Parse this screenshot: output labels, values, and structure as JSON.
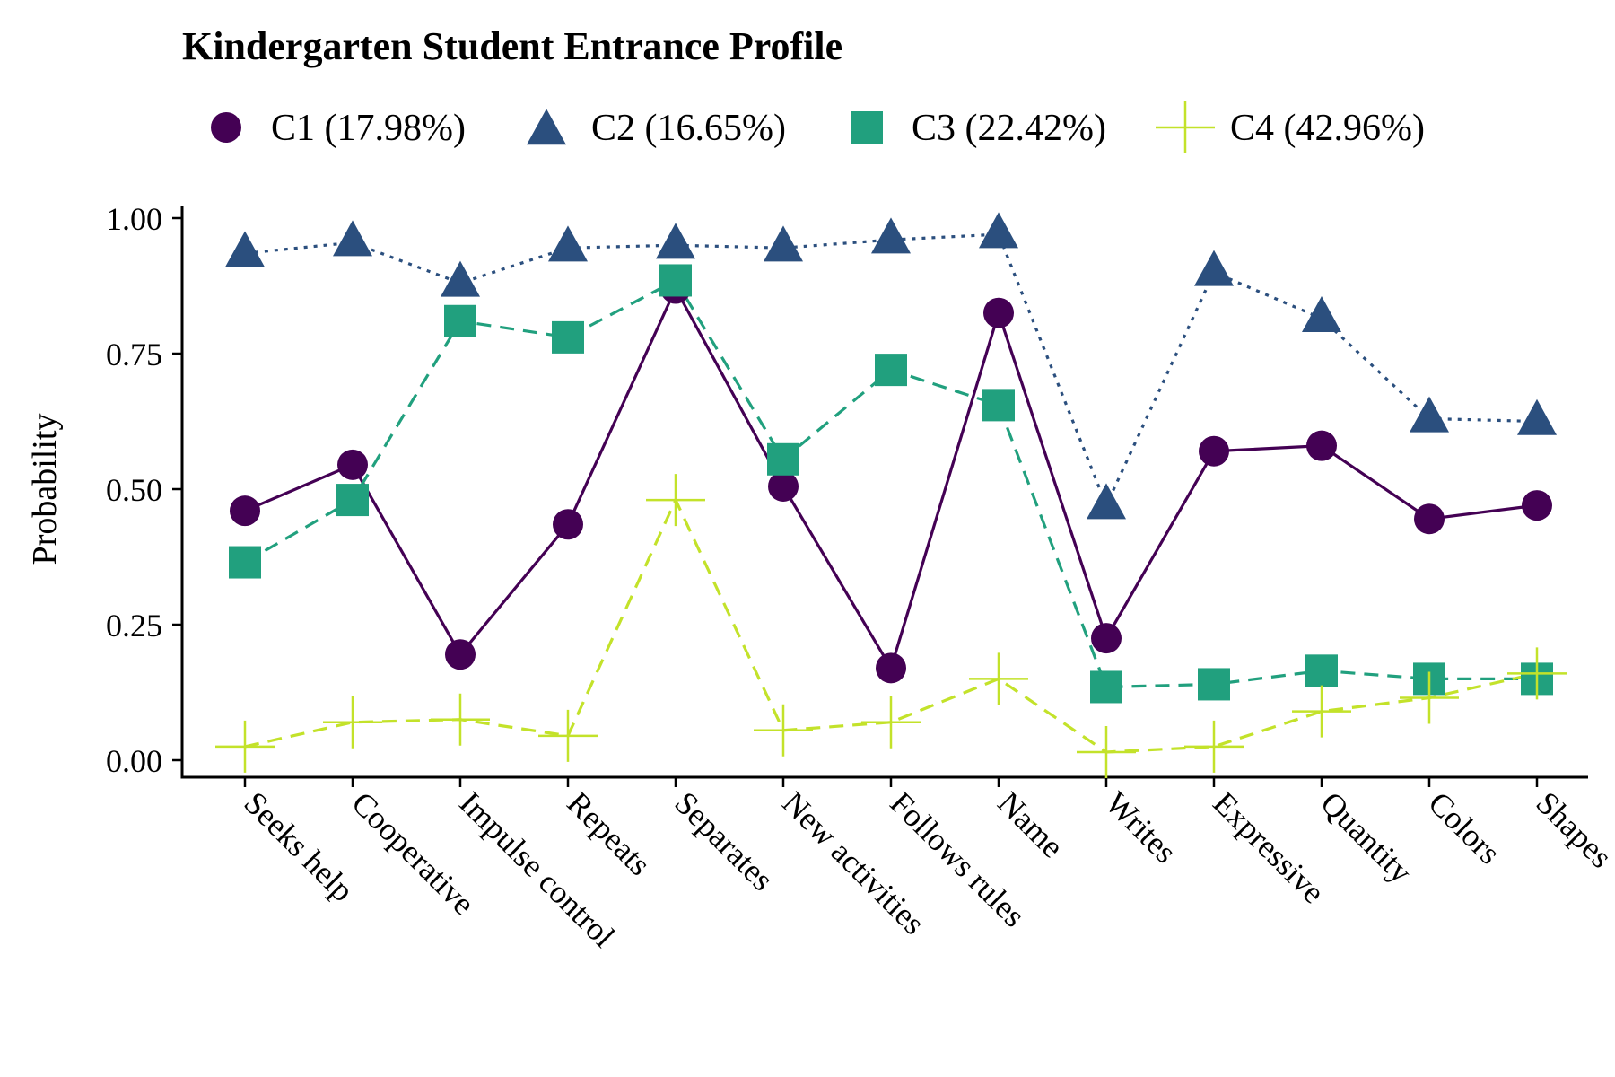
{
  "chart_data": {
    "type": "line",
    "title": "Kindergarten Student Entrance Profile",
    "xlabel": "",
    "ylabel": "Probability",
    "ylim": [
      0,
      1
    ],
    "yticks": [
      "0.00",
      "0.25",
      "0.50",
      "0.75",
      "1.00"
    ],
    "ytick_values": [
      0,
      0.25,
      0.5,
      0.75,
      1.0
    ],
    "grid": false,
    "legend_position": "top",
    "categories": [
      "Seeks help",
      "Cooperative",
      "Impulse control",
      "Repeats",
      "Separates",
      "New activities",
      "Follows rules",
      "Name",
      "Writes",
      "Expressive",
      "Quantity",
      "Colors",
      "Shapes"
    ],
    "series": [
      {
        "name": "C1 (17.98%)",
        "color": "#440154",
        "marker": "circle",
        "line": "solid",
        "values": [
          0.46,
          0.545,
          0.195,
          0.435,
          0.87,
          0.505,
          0.17,
          0.825,
          0.225,
          0.57,
          0.58,
          0.445,
          0.47
        ]
      },
      {
        "name": "C2 (16.65%)",
        "color": "#2b4f7e",
        "marker": "triangle",
        "line": "dotted",
        "values": [
          0.935,
          0.955,
          0.88,
          0.945,
          0.95,
          0.945,
          0.96,
          0.97,
          0.47,
          0.9,
          0.815,
          0.63,
          0.625
        ]
      },
      {
        "name": "C3 (22.42%)",
        "color": "#21a07e",
        "marker": "square",
        "line": "dashed",
        "values": [
          0.365,
          0.48,
          0.81,
          0.78,
          0.885,
          0.555,
          0.72,
          0.655,
          0.135,
          0.14,
          0.165,
          0.15,
          0.15
        ]
      },
      {
        "name": "C4 (42.96%)",
        "color": "#c3e22a",
        "marker": "plus",
        "line": "dashed",
        "values": [
          0.025,
          0.07,
          0.075,
          0.045,
          0.48,
          0.055,
          0.07,
          0.15,
          0.015,
          0.025,
          0.09,
          0.115,
          0.16
        ]
      }
    ]
  }
}
